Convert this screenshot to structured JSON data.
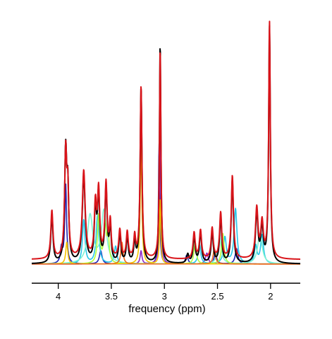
{
  "chart_data": {
    "type": "line",
    "title": "",
    "xlabel": "frequency (ppm)",
    "ylabel": "",
    "x_reversed": true,
    "xlim": [
      4.25,
      1.72
    ],
    "ylim": [
      -0.02,
      1.05
    ],
    "x_ticks": [
      4,
      3.5,
      3,
      2.5,
      2
    ],
    "x_tick_labels": [
      "4",
      "3.5",
      "3",
      "2.5",
      "2"
    ],
    "grid": false,
    "legend": "none",
    "series": [
      {
        "role": "spectrum",
        "color": "#000000",
        "baseline": 0.0,
        "peaks": [
          [
            4.06,
            0.22,
            0.012
          ],
          [
            3.93,
            0.5,
            0.012
          ],
          [
            3.91,
            0.3,
            0.01
          ],
          [
            3.76,
            0.4,
            0.016
          ],
          [
            3.65,
            0.24,
            0.012
          ],
          [
            3.62,
            0.3,
            0.012
          ],
          [
            3.55,
            0.34,
            0.012
          ],
          [
            3.51,
            0.16,
            0.01
          ],
          [
            3.42,
            0.13,
            0.012
          ],
          [
            3.35,
            0.12,
            0.011
          ],
          [
            3.28,
            0.1,
            0.01
          ],
          [
            3.22,
            0.8,
            0.01
          ],
          [
            3.04,
            1.0,
            0.008
          ],
          [
            2.78,
            0.04,
            0.012
          ],
          [
            2.72,
            0.12,
            0.012
          ],
          [
            2.66,
            0.14,
            0.012
          ],
          [
            2.55,
            0.14,
            0.012
          ],
          [
            2.47,
            0.21,
            0.012
          ],
          [
            2.36,
            0.38,
            0.012
          ],
          [
            2.13,
            0.23,
            0.014
          ],
          [
            2.08,
            0.16,
            0.014
          ],
          [
            2.01,
            1.08,
            0.009
          ]
        ]
      },
      {
        "role": "fit",
        "color": "#d9141a",
        "baseline": 0.02,
        "peaks": [
          [
            4.06,
            0.22,
            0.012
          ],
          [
            3.93,
            0.48,
            0.012
          ],
          [
            3.91,
            0.28,
            0.01
          ],
          [
            3.76,
            0.4,
            0.016
          ],
          [
            3.65,
            0.24,
            0.012
          ],
          [
            3.62,
            0.3,
            0.012
          ],
          [
            3.55,
            0.34,
            0.012
          ],
          [
            3.51,
            0.16,
            0.01
          ],
          [
            3.42,
            0.13,
            0.012
          ],
          [
            3.35,
            0.12,
            0.011
          ],
          [
            3.28,
            0.1,
            0.01
          ],
          [
            3.22,
            0.79,
            0.01
          ],
          [
            3.04,
            0.96,
            0.008
          ],
          [
            2.72,
            0.12,
            0.012
          ],
          [
            2.66,
            0.13,
            0.012
          ],
          [
            2.55,
            0.14,
            0.012
          ],
          [
            2.47,
            0.21,
            0.012
          ],
          [
            2.36,
            0.38,
            0.012
          ],
          [
            2.13,
            0.23,
            0.014
          ],
          [
            2.08,
            0.16,
            0.014
          ],
          [
            2.01,
            1.08,
            0.009
          ]
        ]
      },
      {
        "role": "component",
        "color": "#1e22b4",
        "baseline": 0.0,
        "peaks": [
          [
            3.93,
            0.36,
            0.01
          ],
          [
            3.97,
            0.07,
            0.012
          ],
          [
            3.6,
            0.06,
            0.015
          ],
          [
            3.05,
            0.55,
            0.007
          ],
          [
            2.79,
            0.04,
            0.014
          ],
          [
            2.52,
            0.05,
            0.014
          ],
          [
            2.32,
            0.07,
            0.015
          ]
        ]
      },
      {
        "role": "component",
        "color": "#8f2ac7",
        "baseline": 0.0,
        "peaks": [
          [
            3.04,
            0.57,
            0.008
          ],
          [
            3.22,
            0.06,
            0.01
          ],
          [
            2.6,
            0.05,
            0.015
          ]
        ]
      },
      {
        "role": "component",
        "color": "#27c6e8",
        "baseline": 0.0,
        "peaks": [
          [
            3.76,
            0.2,
            0.014
          ],
          [
            3.63,
            0.22,
            0.016
          ],
          [
            3.46,
            0.08,
            0.014
          ],
          [
            2.67,
            0.09,
            0.014
          ],
          [
            2.43,
            0.12,
            0.016
          ],
          [
            2.33,
            0.25,
            0.016
          ],
          [
            2.08,
            0.13,
            0.016
          ],
          [
            2.14,
            0.08,
            0.014
          ]
        ]
      },
      {
        "role": "component",
        "color": "#7ff3d2",
        "baseline": 0.0,
        "peaks": [
          [
            3.7,
            0.22,
            0.03
          ],
          [
            3.57,
            0.24,
            0.028
          ],
          [
            2.48,
            0.12,
            0.02
          ],
          [
            2.1,
            0.14,
            0.025
          ]
        ]
      },
      {
        "role": "component",
        "color": "#b3ff3c",
        "baseline": 0.0,
        "peaks": [
          [
            3.62,
            0.22,
            0.013
          ],
          [
            3.56,
            0.18,
            0.013
          ],
          [
            3.53,
            0.12,
            0.012
          ],
          [
            2.71,
            0.1,
            0.013
          ],
          [
            2.45,
            0.14,
            0.014
          ]
        ]
      },
      {
        "role": "component",
        "color": "#f5c200",
        "baseline": 0.0,
        "peaks": [
          [
            3.22,
            0.55,
            0.009
          ],
          [
            3.04,
            0.3,
            0.007
          ],
          [
            3.92,
            0.1,
            0.011
          ]
        ]
      },
      {
        "role": "component",
        "color": "#ee6a1c",
        "baseline": 0.0,
        "peaks": [
          [
            3.4,
            0.1,
            0.012
          ],
          [
            2.53,
            0.07,
            0.013
          ]
        ]
      }
    ]
  }
}
